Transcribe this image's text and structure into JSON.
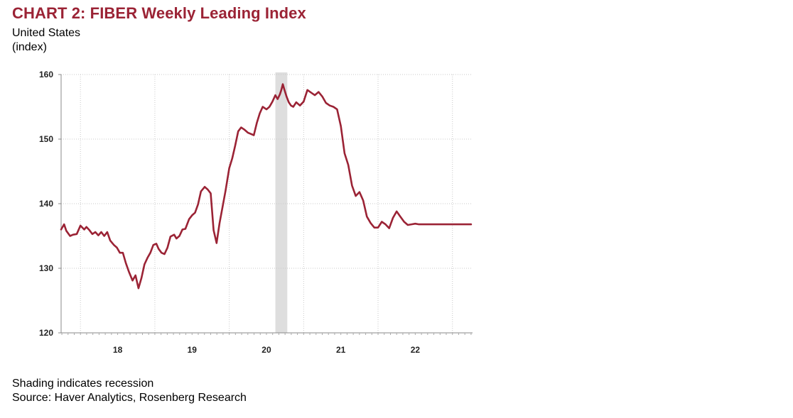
{
  "header": {
    "title": "CHART 2: FIBER Weekly Leading Index",
    "subtitle_line1": "United States",
    "subtitle_line2": "(index)"
  },
  "footer": {
    "note": "Shading indicates recession",
    "source": "Source: Haver Analytics, Rosenberg Research"
  },
  "colors": {
    "title": "#9b2335",
    "series": "#9b2335",
    "recession_shading": "#dedede"
  },
  "chart_data": {
    "type": "line",
    "title": "CHART 2: FIBER Weekly Leading Index",
    "xlabel": "",
    "ylabel": "(index)",
    "ylim": [
      120,
      160
    ],
    "xlim": [
      2017.24,
      2022.77
    ],
    "yticks": [
      120,
      130,
      140,
      150,
      160
    ],
    "yticklabels": [
      "120",
      "130",
      "140",
      "150",
      "160"
    ],
    "xtick_positions": [
      2018,
      2019,
      2020,
      2021,
      2022
    ],
    "xticklabels": [
      "18",
      "19",
      "20",
      "21",
      "22"
    ],
    "grid": true,
    "legend": "none",
    "recession": [
      [
        2020.12,
        2020.28
      ]
    ],
    "series": [
      {
        "x": [
          2017.24,
          2017.28,
          2017.31,
          2017.36,
          2017.4,
          2017.45,
          2017.5,
          2017.55,
          2017.58,
          2017.62,
          2017.66,
          2017.7,
          2017.74,
          2017.78,
          2017.82,
          2017.86,
          2017.9,
          2017.95,
          2017.99,
          2018.03,
          2018.07,
          2018.11,
          2018.15,
          2018.2,
          2018.24,
          2018.28,
          2018.32,
          2018.36,
          2018.4,
          2018.44,
          2018.48,
          2018.52,
          2018.55,
          2018.59,
          2018.63,
          2018.67,
          2018.71,
          2018.76,
          2018.79,
          2018.83,
          2018.87,
          2018.91,
          2018.96,
          2019.0,
          2019.04,
          2019.08,
          2019.12,
          2019.17,
          2019.21,
          2019.25,
          2019.29,
          2019.33,
          2019.37,
          2019.41,
          2019.45,
          2019.5,
          2019.54,
          2019.58,
          2019.62,
          2019.66,
          2019.7,
          2019.75,
          2019.79,
          2019.83,
          2019.87,
          2019.91,
          2019.95,
          2020.0,
          2020.04,
          2020.08,
          2020.12,
          2020.15,
          2020.18,
          2020.2,
          2020.22,
          2020.24,
          2020.27,
          2020.3,
          2020.33,
          2020.36,
          2020.4,
          2020.45,
          2020.5,
          2020.55,
          2020.6,
          2020.65,
          2020.7,
          2020.75,
          2020.8,
          2020.85,
          2020.9,
          2020.95,
          2021.0,
          2021.05,
          2021.1,
          2021.15,
          2021.2,
          2021.25,
          2021.3,
          2021.35,
          2021.4,
          2021.45,
          2021.5,
          2021.55,
          2021.6,
          2021.65,
          2021.7,
          2021.75,
          2021.8,
          2021.85,
          2021.9,
          2021.95,
          2022.0,
          2022.05,
          2022.1,
          2022.15,
          2022.2,
          2022.25,
          2022.3,
          2022.35,
          2022.4,
          2022.45,
          2022.5,
          2022.55,
          2022.6,
          2022.64,
          2022.68,
          2022.72,
          2022.75
        ],
        "y": [
          136.0,
          136.8,
          135.8,
          135.0,
          135.2,
          135.3,
          136.6,
          136.0,
          136.4,
          135.9,
          135.3,
          135.6,
          135.1,
          135.6,
          135.0,
          135.6,
          134.3,
          133.6,
          133.2,
          132.4,
          132.4,
          130.8,
          129.5,
          128.1,
          128.9,
          126.9,
          128.5,
          130.6,
          131.6,
          132.4,
          133.6,
          133.8,
          133.0,
          132.4,
          132.2,
          133.2,
          134.9,
          135.2,
          134.6,
          135.0,
          136.0,
          136.1,
          137.6,
          138.2,
          138.6,
          139.9,
          141.9,
          142.6,
          142.2,
          141.6,
          135.9,
          133.9,
          137.0,
          139.5,
          142.0,
          145.5,
          147.0,
          149.0,
          151.2,
          151.8,
          151.5,
          151.0,
          150.8,
          150.6,
          152.5,
          154.0,
          155.0,
          154.6,
          155.0,
          155.8,
          156.8,
          156.2,
          156.9,
          157.6,
          158.5,
          157.7,
          156.6,
          155.7,
          155.2,
          155.0,
          155.7,
          155.2,
          155.8,
          157.6,
          157.2,
          156.8,
          157.3,
          156.6,
          155.6,
          155.2,
          155.0,
          154.6,
          152.0,
          147.8,
          146.0,
          142.8,
          141.2,
          141.8,
          140.5,
          138.0,
          137.0,
          136.3,
          136.3,
          137.2,
          136.8,
          136.2,
          137.8,
          138.8,
          138.0,
          137.2,
          136.7,
          136.8,
          136.9,
          136.8,
          136.8,
          136.8,
          136.8,
          136.8,
          136.8,
          136.8,
          136.8,
          136.8,
          136.8,
          136.8,
          136.8,
          136.8,
          136.8,
          136.8,
          136.8
        ]
      }
    ]
  }
}
